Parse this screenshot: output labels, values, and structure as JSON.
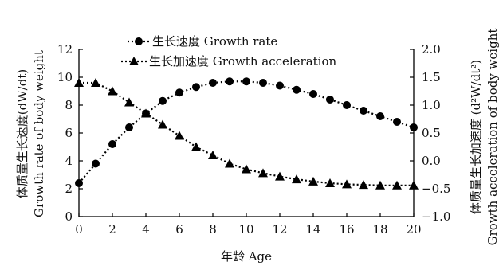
{
  "chart_data": {
    "type": "line",
    "x": [
      0,
      1,
      2,
      3,
      4,
      5,
      6,
      7,
      8,
      9,
      10,
      11,
      12,
      13,
      14,
      15,
      16,
      17,
      18,
      19,
      20
    ],
    "series": [
      {
        "name": "生长速度  Growth rate",
        "axis": "left",
        "marker": "circle",
        "values": [
          2.4,
          3.8,
          5.2,
          6.4,
          7.4,
          8.3,
          8.9,
          9.3,
          9.6,
          9.7,
          9.7,
          9.6,
          9.4,
          9.1,
          8.8,
          8.4,
          8.0,
          7.6,
          7.2,
          6.8,
          6.4
        ]
      },
      {
        "name": "生长加速度  Growth acceleration",
        "axis": "right",
        "marker": "triangle",
        "values": [
          1.4,
          1.4,
          1.25,
          1.05,
          0.85,
          0.65,
          0.45,
          0.25,
          0.1,
          -0.05,
          -0.15,
          -0.22,
          -0.28,
          -0.33,
          -0.37,
          -0.4,
          -0.42,
          -0.43,
          -0.44,
          -0.44,
          -0.44
        ]
      }
    ],
    "xlabel": "年龄 Age",
    "ylabel_left": [
      "体质量生长速度(dW/dt)",
      "Growth rate of body weight"
    ],
    "ylabel_right": [
      "体质量生长加速度 (d²W/dt²)",
      "Growth acceleration of body weight"
    ],
    "xlim": [
      0,
      20
    ],
    "ylim_left": [
      0,
      12
    ],
    "ylim_right": [
      -1.0,
      2.0
    ],
    "x_ticks": [
      "0",
      "2",
      "4",
      "6",
      "8",
      "10",
      "12",
      "14",
      "16",
      "18",
      "20"
    ],
    "y_ticks_left": [
      "0",
      "2",
      "4",
      "6",
      "8",
      "10",
      "12"
    ],
    "y_ticks_right": [
      "−1.0",
      "−0.5",
      "0.0",
      "0.5",
      "1.0",
      "1.5",
      "2.0"
    ],
    "grid": false,
    "legend_position": "top-center"
  }
}
